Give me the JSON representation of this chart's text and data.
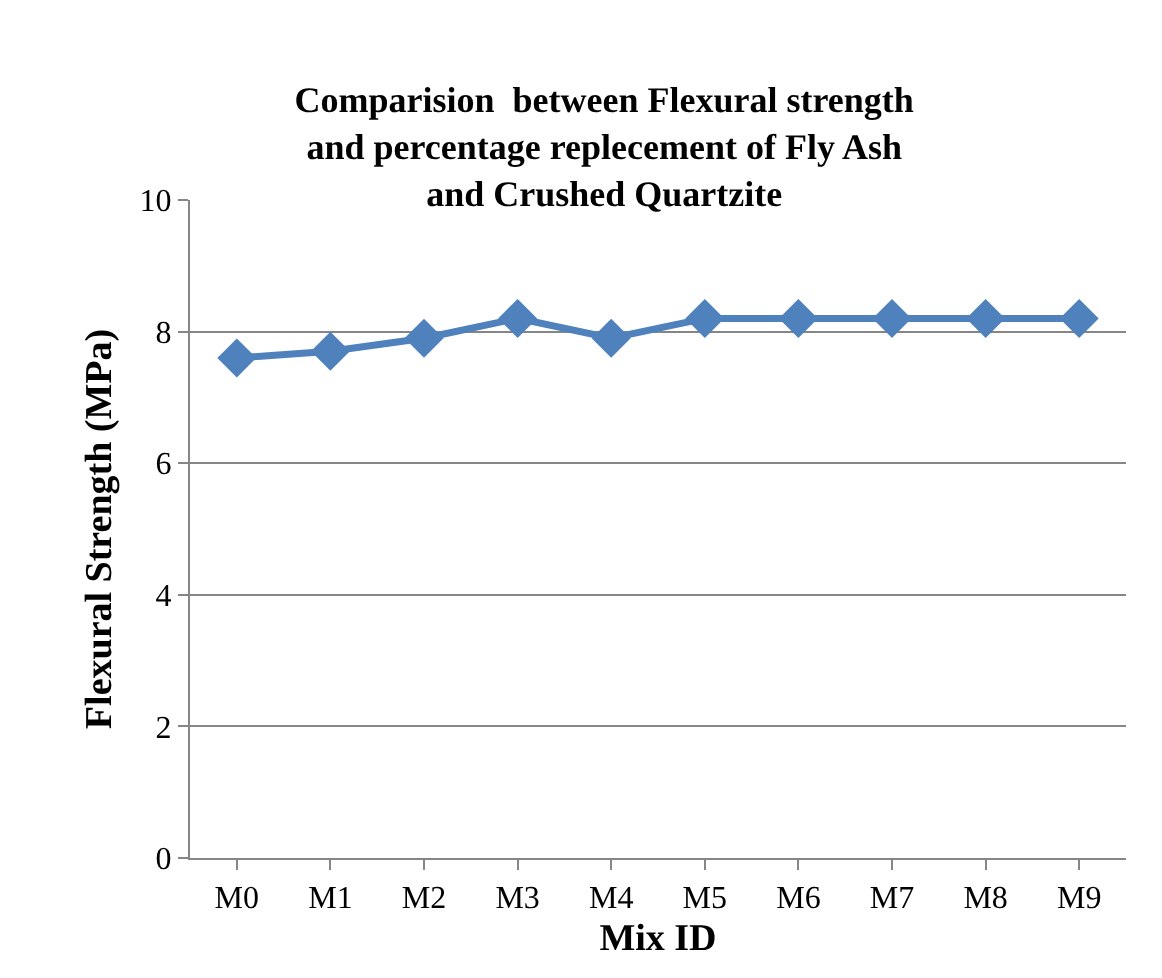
{
  "chart_data": {
    "type": "line",
    "title": "Comparision  between Flexural strength and percentage replecement of Fly Ash and Crushed Quartzite",
    "xlabel": "Mix ID",
    "ylabel": "Flexural Strength (MPa)",
    "categories": [
      "M0",
      "M1",
      "M2",
      "M3",
      "M4",
      "M5",
      "M6",
      "M7",
      "M8",
      "M9"
    ],
    "series": [
      {
        "color": "#4f81bd",
        "values": [
          7.6,
          7.7,
          7.9,
          8.2,
          7.9,
          8.2,
          8.2,
          8.2,
          8.2,
          8.2
        ]
      }
    ],
    "ylim": [
      0,
      10
    ],
    "yticks": [
      0,
      2,
      4,
      6,
      8,
      10
    ],
    "grid": "y",
    "marker": "diamond",
    "line_style": "solid",
    "legend": false
  }
}
